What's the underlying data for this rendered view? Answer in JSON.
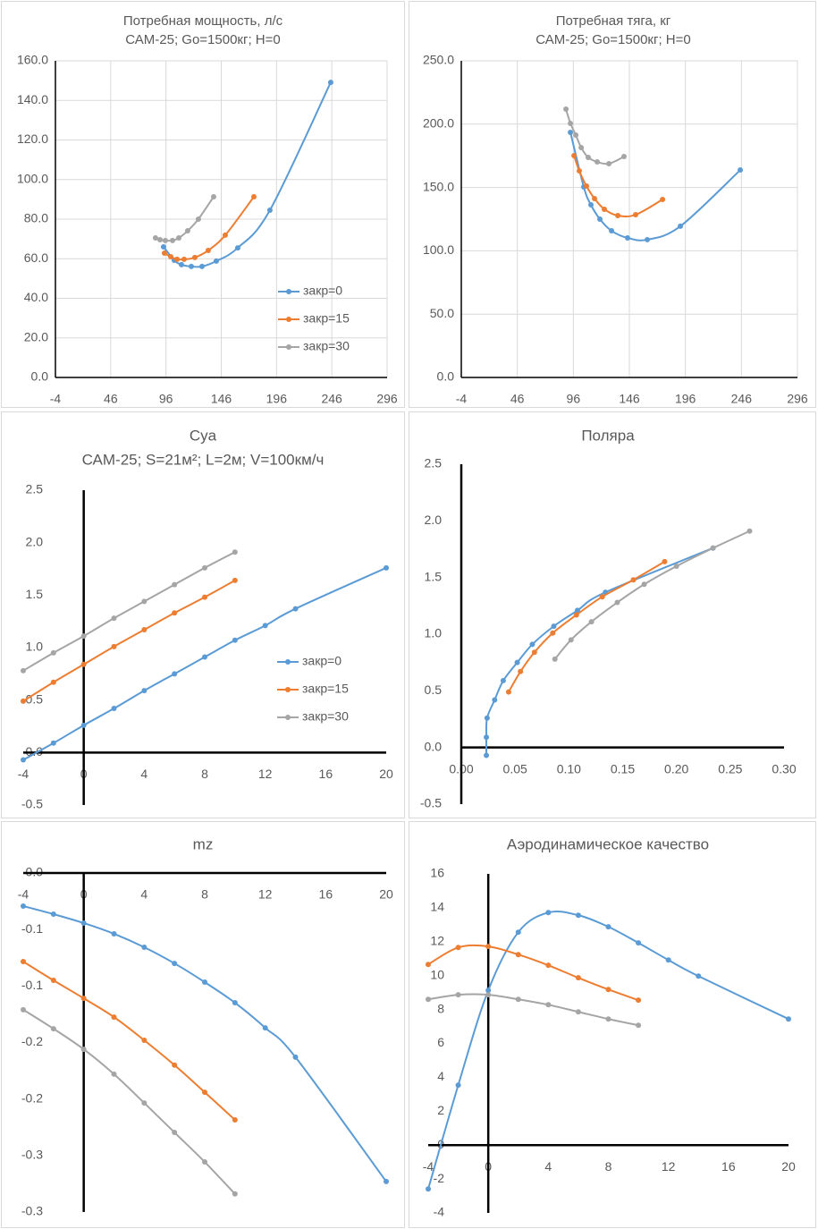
{
  "chart_data": [
    {
      "type": "line",
      "title": "Потребная мощность, л/с",
      "subtitle": "САМ-25; Go=1500кг; H=0",
      "xlim": [
        -4,
        296
      ],
      "xticks": [
        -4,
        46,
        96,
        146,
        196,
        246,
        296
      ],
      "ylim": [
        0,
        160
      ],
      "yticks": [
        {
          "value": 0,
          "label": "0.0"
        },
        {
          "value": 20,
          "label": "20.0"
        },
        {
          "value": 40,
          "label": "40.0"
        },
        {
          "value": 60,
          "label": "60.0"
        },
        {
          "value": 80,
          "label": "80.0"
        },
        {
          "value": 100,
          "label": "100.0"
        },
        {
          "value": 120,
          "label": "120.0"
        },
        {
          "value": 140,
          "label": "140.0"
        },
        {
          "value": 160,
          "label": "160.0"
        }
      ],
      "grid": true,
      "legend": "lower right",
      "series": [
        {
          "name": "закр=0",
          "color": "#5b9bd5",
          "x": [
            93.8,
            103.5,
            110,
            118.9,
            128.6,
            141.5,
            160.9,
            190,
            245
          ],
          "values": [
            66,
            59.2,
            57.0,
            56.1,
            56.1,
            58.8,
            65.5,
            84.5,
            149.1
          ]
        },
        {
          "name": "закр=15",
          "color": "#ed7d31",
          "x": [
            94.6,
            100.3,
            106,
            112.4,
            122.1,
            134.2,
            149.6,
            175.5
          ],
          "values": [
            62.8,
            61,
            59.7,
            59.7,
            60.6,
            64.2,
            71.9,
            91.3
          ]
        },
        {
          "name": "закр=30",
          "color": "#a5a5a5",
          "x": [
            86.5,
            90.6,
            95.4,
            101.9,
            107.6,
            115.6,
            125.3,
            139.1
          ],
          "values": [
            70.5,
            69.6,
            69.2,
            69.2,
            70.5,
            74.1,
            80,
            91.3
          ]
        }
      ]
    },
    {
      "type": "line",
      "title": "Потребная тяга, кг",
      "subtitle": "САМ-25; Go=1500кг; H=0",
      "xlim": [
        -4,
        296
      ],
      "xticks": [
        -4,
        46,
        96,
        146,
        196,
        246,
        296
      ],
      "ylim": [
        0,
        250
      ],
      "yticks": [
        {
          "value": 0,
          "label": "0.0"
        },
        {
          "value": 50,
          "label": "50.0"
        },
        {
          "value": 100,
          "label": "100.0"
        },
        {
          "value": 150,
          "label": "150.0"
        },
        {
          "value": 200,
          "label": "200.0"
        },
        {
          "value": 250,
          "label": "250.0"
        }
      ],
      "grid": true,
      "series": [
        {
          "name": "закр=0",
          "color": "#5b9bd5",
          "x": [
            93.4,
            105.3,
            111.7,
            119.7,
            130.1,
            144.4,
            162,
            191.5,
            245
          ],
          "values": [
            193.5,
            150.4,
            136.3,
            125,
            115.8,
            110.2,
            108.8,
            119.4,
            163.8
          ]
        },
        {
          "name": "закр=15",
          "color": "#ed7d31",
          "x": [
            96.6,
            101.3,
            107.7,
            114.9,
            123.7,
            135.7,
            151.6,
            175.6
          ],
          "values": [
            175.1,
            163.1,
            151.1,
            141.2,
            132.8,
            127.8,
            128.5,
            140.5
          ]
        },
        {
          "name": "закр=30",
          "color": "#a5a5a5",
          "x": [
            89.4,
            93.4,
            98.2,
            103,
            109.3,
            117.3,
            127.7,
            141.2
          ],
          "values": [
            211.9,
            200.6,
            191.4,
            181.5,
            173.7,
            170.2,
            168.8,
            174.4
          ]
        }
      ]
    },
    {
      "type": "line",
      "title": "Cya",
      "subtitle": "САМ-25; S=21м²; L=2м; V=100км/ч",
      "xlim": [
        -4,
        20
      ],
      "xticks": [
        -4,
        0,
        4,
        8,
        12,
        16,
        20
      ],
      "ylim": [
        -0.5,
        2.5
      ],
      "yticks": [
        -0.5,
        {
          "value": 0,
          "label": "0.0"
        },
        0.5,
        {
          "value": 1,
          "label": "1.0"
        },
        1.5,
        {
          "value": 2,
          "label": "2.0"
        },
        2.5
      ],
      "grid": false,
      "axis_cross": "zero",
      "legend": "right",
      "series": [
        {
          "name": "закр=0",
          "color": "#5b9bd5",
          "x": [
            -4,
            -2,
            0,
            2,
            4,
            6,
            8,
            10,
            12,
            14,
            20
          ],
          "values": [
            -0.07,
            0.09,
            0.26,
            0.42,
            0.59,
            0.75,
            0.91,
            1.07,
            1.21,
            1.37,
            1.76
          ]
        },
        {
          "name": "закр=15",
          "color": "#ed7d31",
          "x": [
            -4,
            -2,
            0,
            2,
            4,
            6,
            8,
            10
          ],
          "values": [
            0.49,
            0.67,
            0.84,
            1.01,
            1.17,
            1.33,
            1.48,
            1.64
          ]
        },
        {
          "name": "закр=30",
          "color": "#a5a5a5",
          "x": [
            -4,
            -2,
            0,
            2,
            4,
            6,
            8,
            10
          ],
          "values": [
            0.78,
            0.95,
            1.11,
            1.28,
            1.44,
            1.6,
            1.76,
            1.91
          ]
        }
      ]
    },
    {
      "type": "line",
      "title": "Поляра",
      "xlim": [
        0,
        0.3
      ],
      "xticks": [
        {
          "value": 0,
          "label": "0.00"
        },
        {
          "value": 0.05,
          "label": "0.05"
        },
        {
          "value": 0.1,
          "label": "0.10"
        },
        {
          "value": 0.15,
          "label": "0.15"
        },
        {
          "value": 0.2,
          "label": "0.20"
        },
        {
          "value": 0.25,
          "label": "0.25"
        },
        {
          "value": 0.3,
          "label": "0.30"
        }
      ],
      "ylim": [
        -0.5,
        2.5
      ],
      "yticks": [
        -0.5,
        {
          "value": 0,
          "label": "0.0"
        },
        0.5,
        {
          "value": 1,
          "label": "1.0"
        },
        1.5,
        {
          "value": 2,
          "label": "2.0"
        },
        2.5
      ],
      "grid": false,
      "axis_cross": "zero",
      "series": [
        {
          "name": "закр=0",
          "color": "#5b9bd5",
          "x": [
            0.0233,
            0.0233,
            0.024,
            0.031,
            0.039,
            0.052,
            0.066,
            0.086,
            0.108,
            0.134,
            0.234
          ],
          "values": [
            -0.07,
            0.09,
            0.26,
            0.42,
            0.59,
            0.75,
            0.91,
            1.07,
            1.21,
            1.37,
            1.76
          ]
        },
        {
          "name": "закр=15",
          "color": "#ed7d31",
          "x": [
            0.044,
            0.055,
            0.068,
            0.085,
            0.107,
            0.131,
            0.16,
            0.189
          ],
          "values": [
            0.49,
            0.67,
            0.84,
            1.01,
            1.17,
            1.33,
            1.48,
            1.64
          ]
        },
        {
          "name": "закр=30",
          "color": "#a5a5a5",
          "x": [
            0.087,
            0.102,
            0.121,
            0.145,
            0.17,
            0.2,
            0.234,
            0.268
          ],
          "values": [
            0.78,
            0.95,
            1.11,
            1.28,
            1.44,
            1.6,
            1.76,
            1.91
          ]
        }
      ]
    },
    {
      "type": "line",
      "title": "mz",
      "xlim": [
        -4,
        20
      ],
      "xticks": [
        -4,
        0,
        4,
        8,
        12,
        16,
        20
      ],
      "ylim": [
        -0.3,
        0
      ],
      "yticks": [
        {
          "value": 0,
          "label": "0.0"
        },
        {
          "value": -0.05,
          "label": "-0.1"
        },
        {
          "value": -0.1,
          "label": "-0.1"
        },
        {
          "value": -0.15,
          "label": "-0.2"
        },
        {
          "value": -0.2,
          "label": "-0.2"
        },
        {
          "value": -0.25,
          "label": "-0.3"
        },
        {
          "value": -0.3,
          "label": "-0.3"
        }
      ],
      "grid": false,
      "axis_cross": "zero",
      "series": [
        {
          "name": "закр=0",
          "color": "#5b9bd5",
          "x": [
            -4,
            -2,
            0,
            2,
            4,
            6,
            8,
            10,
            12,
            14,
            20
          ],
          "values": [
            -0.0293,
            -0.0364,
            -0.0443,
            -0.0538,
            -0.0657,
            -0.08,
            -0.0966,
            -0.1148,
            -0.137,
            -0.163,
            -0.273
          ]
        },
        {
          "name": "закр=15",
          "color": "#ed7d31",
          "x": [
            -4,
            -2,
            0,
            2,
            4,
            6,
            8,
            10
          ],
          "values": [
            -0.0784,
            -0.095,
            -0.1109,
            -0.1275,
            -0.148,
            -0.17,
            -0.194,
            -0.2185
          ]
        },
        {
          "name": "закр=30",
          "color": "#a5a5a5",
          "x": [
            -4,
            -2,
            0,
            2,
            4,
            6,
            8,
            10
          ],
          "values": [
            -0.121,
            -0.1378,
            -0.156,
            -0.178,
            -0.2035,
            -0.2296,
            -0.2557,
            -0.284
          ]
        }
      ]
    },
    {
      "type": "line",
      "title": "Аэродинамическое качество",
      "xlim": [
        -4,
        20
      ],
      "xticks": [
        -4,
        0,
        4,
        8,
        12,
        16,
        20
      ],
      "ylim": [
        -4,
        16
      ],
      "yticks": [
        -4,
        -2,
        0,
        2,
        4,
        6,
        8,
        10,
        12,
        14,
        16
      ],
      "grid": false,
      "axis_cross": "zero",
      "series": [
        {
          "name": "закр=0",
          "color": "#5b9bd5",
          "x": [
            -4,
            -2,
            0,
            2,
            4,
            6,
            8,
            10,
            12,
            14,
            20
          ],
          "values": [
            -2.59,
            3.54,
            9.13,
            12.56,
            13.72,
            13.56,
            12.88,
            11.93,
            10.92,
            9.97,
            7.44
          ]
        },
        {
          "name": "закр=15",
          "color": "#ed7d31",
          "x": [
            -4,
            -2,
            0,
            2,
            4,
            6,
            8,
            10
          ],
          "values": [
            10.66,
            11.66,
            11.72,
            11.24,
            10.61,
            9.87,
            9.18,
            8.55
          ]
        },
        {
          "name": "закр=30",
          "color": "#a5a5a5",
          "x": [
            -4,
            -2,
            0,
            2,
            4,
            6,
            8,
            10
          ],
          "values": [
            8.6,
            8.87,
            8.87,
            8.6,
            8.28,
            7.86,
            7.44,
            7.07
          ]
        }
      ]
    }
  ]
}
